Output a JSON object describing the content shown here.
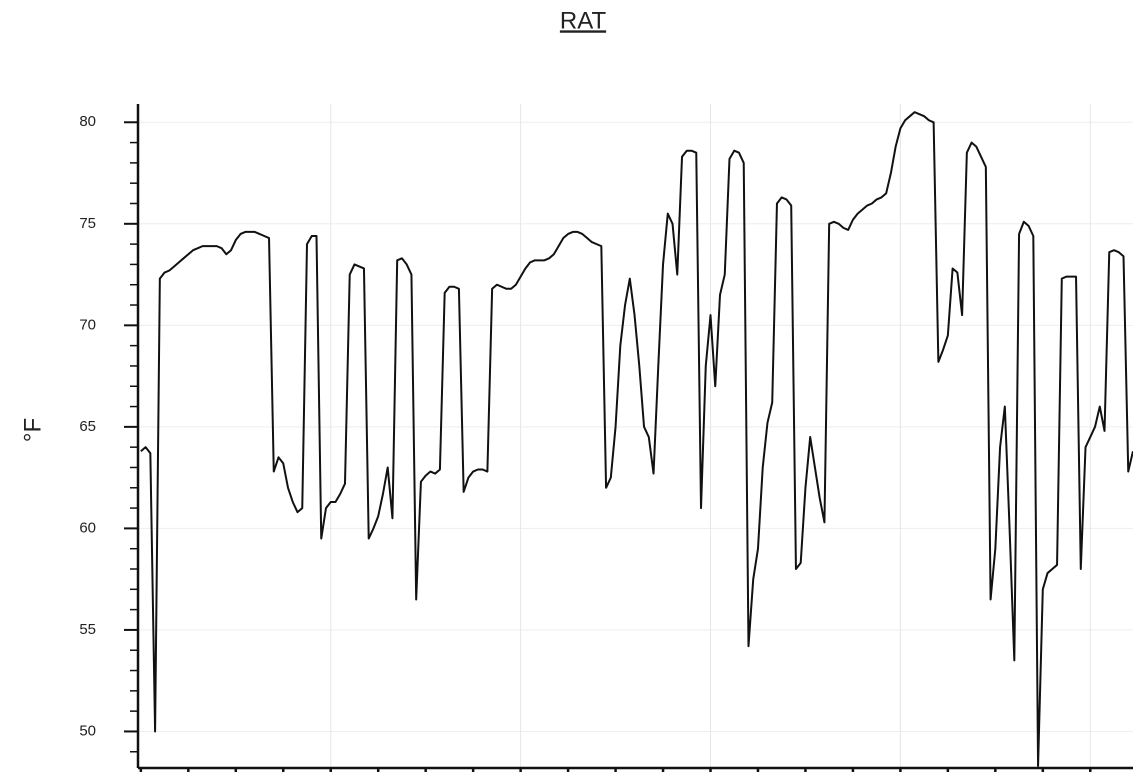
{
  "chart_data": {
    "type": "line",
    "title": "RAT",
    "y_label": "°F",
    "color": "#111111",
    "ylim": [
      48.2,
      80.9
    ],
    "yticks": [
      50,
      55,
      60,
      65,
      70,
      75,
      80
    ],
    "yminorticks": [
      49,
      51,
      52,
      53,
      54,
      56,
      57,
      58,
      59,
      61,
      62,
      63,
      64,
      66,
      67,
      68,
      69,
      71,
      72,
      73,
      74,
      76,
      77,
      78,
      79
    ],
    "xlim": [
      -0.6,
      209
    ],
    "xticks": [
      0,
      10,
      20,
      30,
      40,
      50,
      60,
      70,
      80,
      90,
      100,
      110,
      120,
      130,
      140,
      150,
      160,
      170,
      180,
      190,
      200
    ],
    "grid": true,
    "values": [
      63.8,
      64,
      63.7,
      50,
      72.3,
      72.6,
      72.7,
      72.9,
      73.1,
      73.3,
      73.5,
      73.7,
      73.8,
      73.9,
      73.9,
      73.9,
      73.9,
      73.8,
      73.5,
      73.7,
      74.2,
      74.5,
      74.6,
      74.6,
      74.6,
      74.5,
      74.4,
      74.3,
      62.8,
      63.5,
      63.2,
      62,
      61.3,
      60.8,
      61,
      74,
      74.4,
      74.4,
      59.5,
      61,
      61.3,
      61.3,
      61.7,
      62.2,
      72.5,
      73,
      72.9,
      72.8,
      59.5,
      60,
      60.6,
      61.7,
      63,
      60.5,
      73.2,
      73.3,
      73,
      72.5,
      56.5,
      62.3,
      62.6,
      62.8,
      62.7,
      62.9,
      71.6,
      71.9,
      71.9,
      71.8,
      61.8,
      62.5,
      62.8,
      62.9,
      62.9,
      62.8,
      71.8,
      72,
      71.9,
      71.8,
      71.8,
      72,
      72.4,
      72.8,
      73.1,
      73.2,
      73.2,
      73.2,
      73.3,
      73.5,
      73.9,
      74.3,
      74.5,
      74.6,
      74.6,
      74.5,
      74.3,
      74.1,
      74,
      73.9,
      62,
      62.5,
      65,
      69,
      71,
      72.3,
      70.5,
      68,
      65,
      64.5,
      62.7,
      68,
      73,
      75.5,
      75,
      72.5,
      78.3,
      78.6,
      78.6,
      78.5,
      61,
      68,
      70.5,
      67,
      71.5,
      72.5,
      78.2,
      78.6,
      78.5,
      78,
      54.2,
      57.5,
      59,
      63,
      65.2,
      66.2,
      76,
      76.3,
      76.2,
      75.9,
      58,
      58.3,
      62,
      64.5,
      63,
      61.5,
      60.3,
      75,
      75.1,
      75,
      74.8,
      74.7,
      75.2,
      75.5,
      75.7,
      75.9,
      76,
      76.2,
      76.3,
      76.5,
      77.5,
      78.8,
      79.7,
      80.1,
      80.3,
      80.5,
      80.4,
      80.3,
      80.1,
      80,
      68.2,
      68.8,
      69.5,
      72.8,
      72.6,
      70.5,
      78.5,
      79,
      78.8,
      78.3,
      77.8,
      56.5,
      59,
      64,
      66,
      60,
      53.5,
      74.5,
      75.1,
      74.9,
      74.4,
      48.3,
      57,
      57.8,
      58,
      58.2,
      72.3,
      72.4,
      72.4,
      72.4,
      58,
      64,
      64.5,
      65,
      66,
      64.8,
      73.6,
      73.7,
      73.6,
      73.4,
      62.8,
      63.8
    ]
  }
}
